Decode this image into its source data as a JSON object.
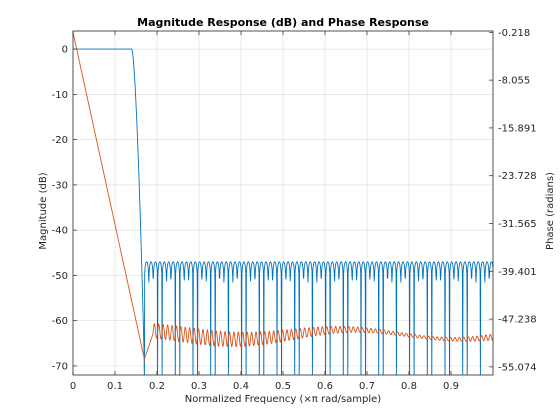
{
  "chart_data": {
    "type": "line",
    "title": "Magnitude Response (dB) and Phase Response",
    "xlabel": "Normalized Frequency (×π rad/sample)",
    "ylabel_left": "Magnitude (dB)",
    "ylabel_right": "Phase (radians)",
    "xlim": [
      0,
      1
    ],
    "ylim_left": [
      -72,
      4
    ],
    "ylim_right": [
      -56.4,
      -0.0
    ],
    "x_ticks": [
      "0",
      "0.1",
      "0.2",
      "0.3",
      "0.4",
      "0.5",
      "0.6",
      "0.7",
      "0.8",
      "0.9"
    ],
    "y_ticks_left": [
      "0",
      "-10",
      "-20",
      "-30",
      "-40",
      "-50",
      "-60",
      "-70"
    ],
    "y_ticks_right": [
      "-0.218",
      "-8.055",
      "-15.891",
      "-23.728",
      "-31.565",
      "-39.401",
      "-47.238",
      "-55.074"
    ],
    "grid": true,
    "legend": "none",
    "series": [
      {
        "axis": "left",
        "color": "#0072BD",
        "passband_db": 0,
        "passband_edge": 0.14,
        "stopband_edge": 0.17,
        "stopband_peak_db": -47,
        "stopband_floor_db": -72
      },
      {
        "axis": "right",
        "color": "#D95319",
        "start_rad": -0.218,
        "min_rad": -53.8,
        "min_at": 0.17,
        "stopband_band_rad": [
          -51.0,
          -48.5
        ]
      }
    ]
  }
}
